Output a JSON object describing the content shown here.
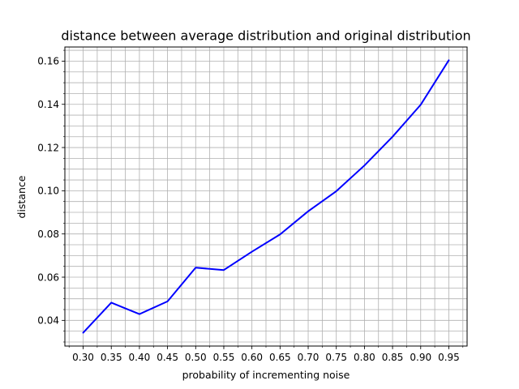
{
  "chart_data": {
    "type": "line",
    "title": "distance between average distribution and original distribution",
    "xlabel": "probability of incrementing noise",
    "ylabel": "distance",
    "x": [
      0.3,
      0.35,
      0.4,
      0.45,
      0.5,
      0.55,
      0.6,
      0.65,
      0.7,
      0.75,
      0.8,
      0.85,
      0.9,
      0.95
    ],
    "series": [
      {
        "values": [
          0.0343,
          0.0482,
          0.0429,
          0.0488,
          0.0644,
          0.0633,
          0.0718,
          0.0798,
          0.0905,
          0.0998,
          0.1117,
          0.125,
          0.1398,
          0.1604
        ],
        "color": "#0000ff"
      }
    ],
    "xlim": [
      0.2675,
      0.9825
    ],
    "ylim": [
      0.02812,
      0.16653
    ],
    "xticks": [
      "0.30",
      "0.35",
      "0.40",
      "0.45",
      "0.50",
      "0.55",
      "0.60",
      "0.65",
      "0.70",
      "0.75",
      "0.80",
      "0.85",
      "0.90",
      "0.95"
    ],
    "yticks": [
      "0.04",
      "0.06",
      "0.08",
      "0.10",
      "0.12",
      "0.14",
      "0.16"
    ],
    "x_minor_step": 0.025,
    "y_minor_step": 0.005,
    "grid": true,
    "grid_color": "#b0b0b0"
  }
}
